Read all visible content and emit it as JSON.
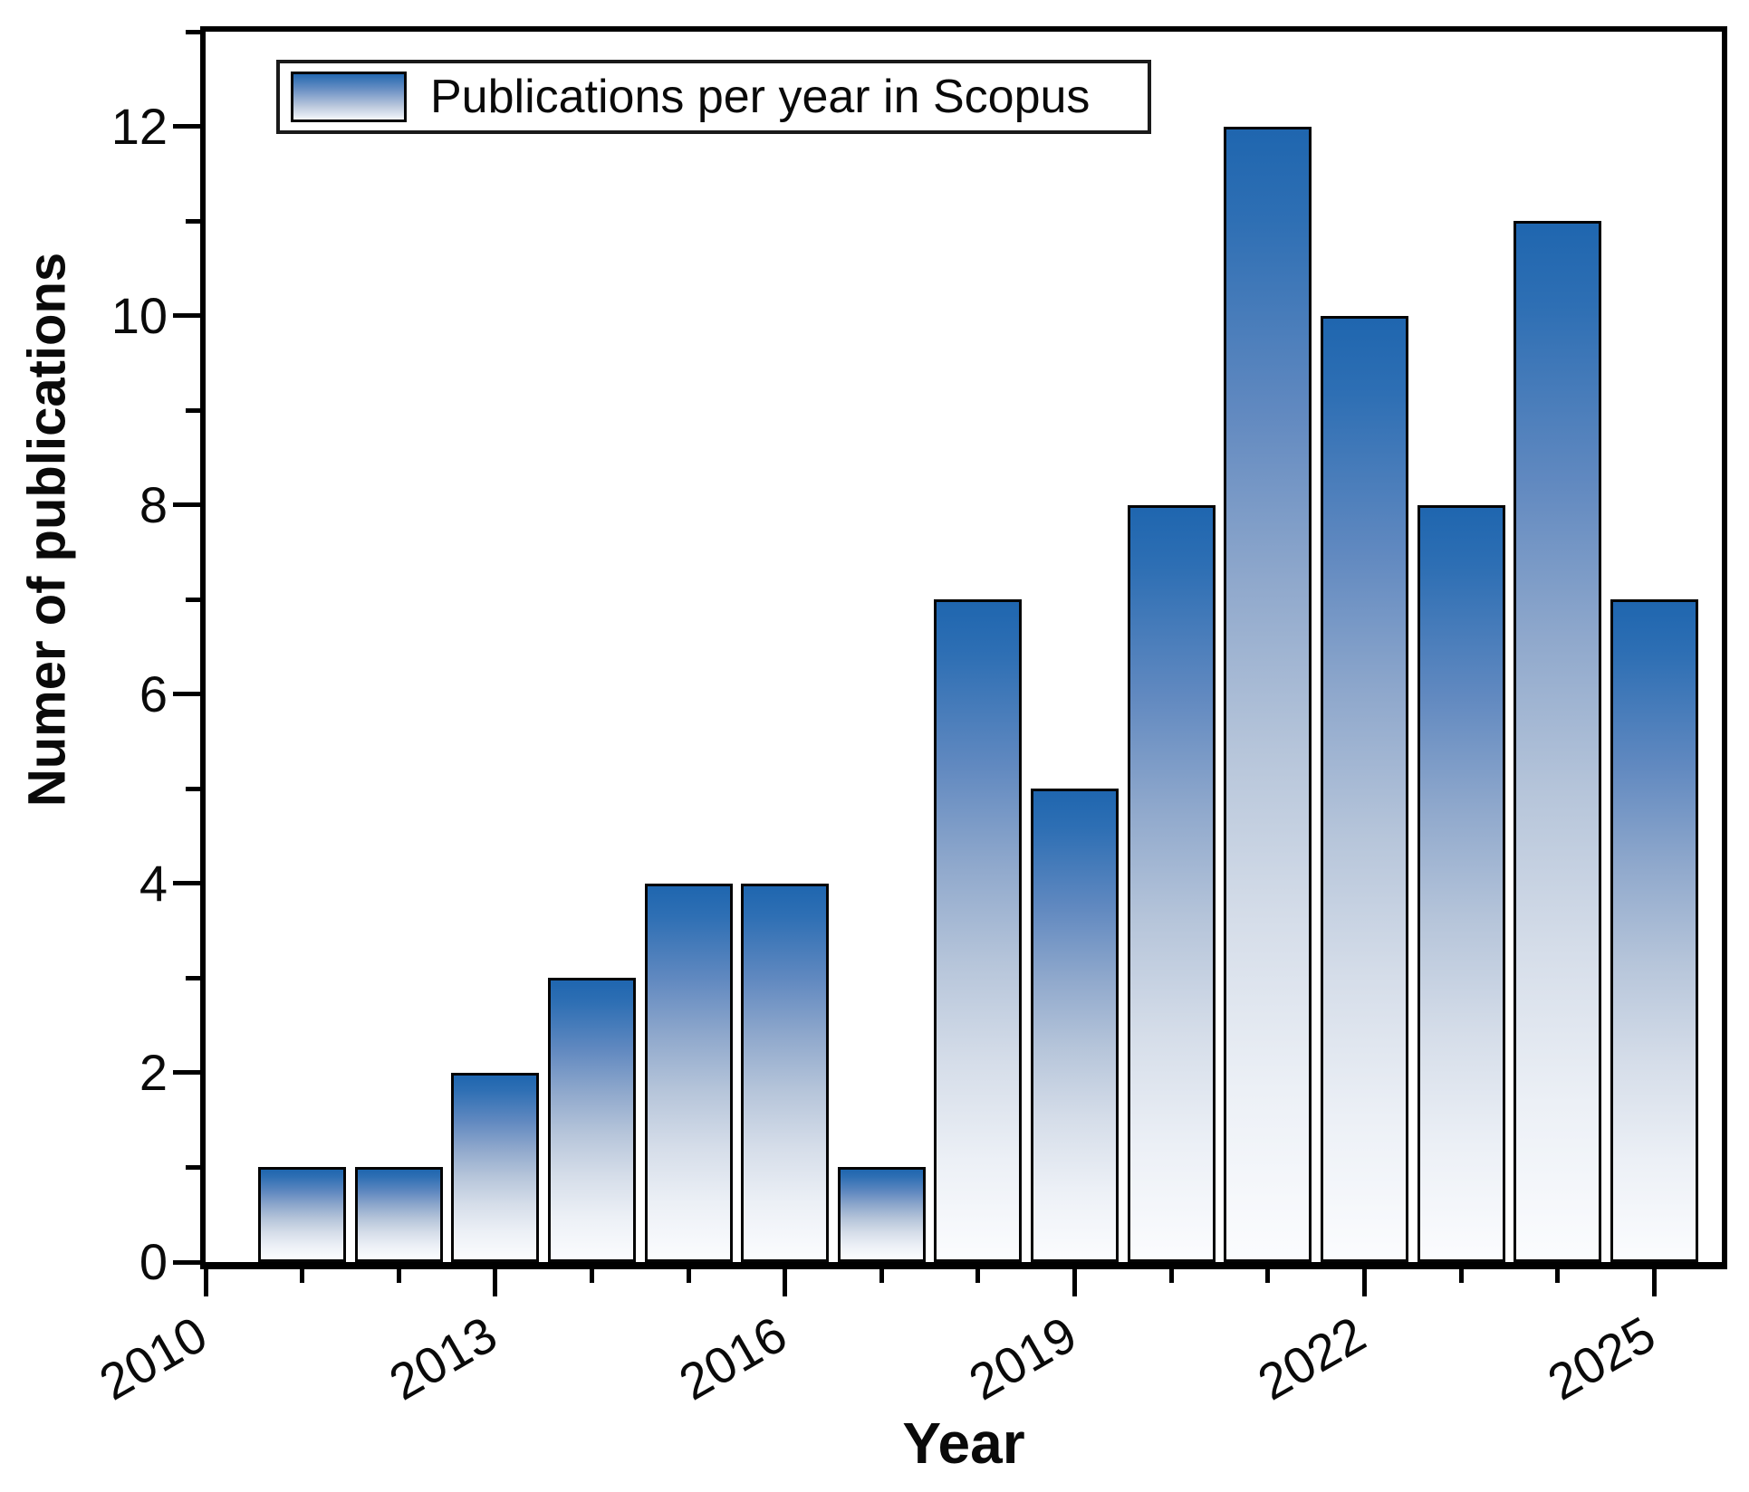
{
  "figure": {
    "background": "#ffffff",
    "frame_color": "#000000"
  },
  "legend": {
    "label": "Publications per year in Scopus",
    "position": "top-left",
    "swatch_gradient": [
      "#2368b0",
      "#f4f7fb"
    ]
  },
  "axes": {
    "x_title": "Year",
    "y_title": "Numer of publications",
    "tick_color": "#000000",
    "text_color": "#0a0a0a"
  },
  "chart_data": {
    "type": "bar",
    "title": "",
    "categories": [
      2011,
      2012,
      2013,
      2014,
      2015,
      2016,
      2017,
      2018,
      2019,
      2020,
      2021,
      2022,
      2023,
      2024,
      2025
    ],
    "values": [
      1,
      1,
      2,
      3,
      4,
      4,
      1,
      7,
      5,
      8,
      12,
      10,
      8,
      11,
      7
    ],
    "xlabel": "Year",
    "ylabel": "Numer of publications",
    "xlim": [
      2010,
      2025.7
    ],
    "ylim": [
      0,
      13
    ],
    "x_major_ticks": [
      2010,
      2013,
      2016,
      2019,
      2022,
      2025
    ],
    "x_minor_ticks": [
      2011,
      2012,
      2014,
      2015,
      2017,
      2018,
      2020,
      2021,
      2023,
      2024
    ],
    "y_major_ticks": [
      0,
      2,
      4,
      6,
      8,
      10,
      12
    ],
    "y_minor_ticks": [
      1,
      3,
      5,
      7,
      9,
      11,
      13
    ],
    "grid": false,
    "legend": [
      "Publications per year in Scopus"
    ],
    "legend_position": "top-left",
    "bar_color_top": "#1f66af",
    "bar_color_bottom": "#fbfcfe",
    "bar_border_color": "#040404"
  }
}
